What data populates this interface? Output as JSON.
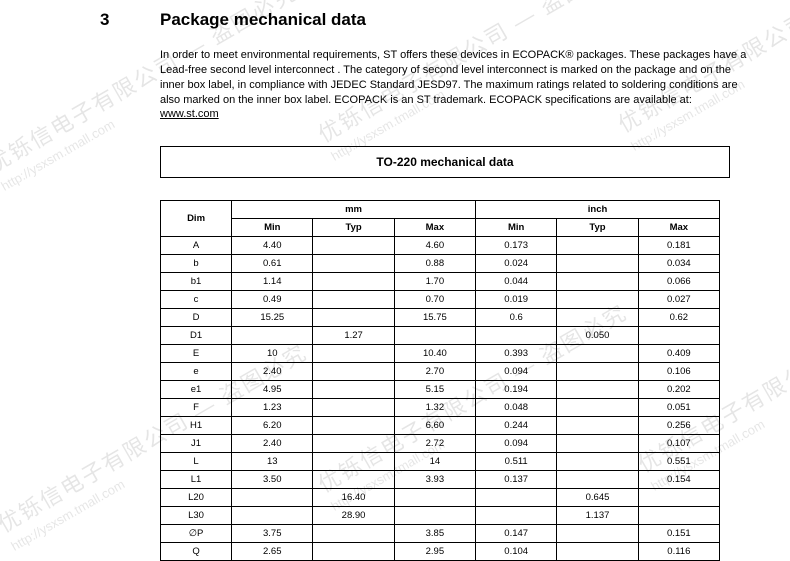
{
  "section": {
    "number": "3",
    "title": "Package mechanical data"
  },
  "paragraph": {
    "text": "In order to meet environmental requirements, ST offers these devices in ECOPACK® packages. These packages have a Lead-free second level interconnect . The category of second level interconnect is marked on the package and on the inner box label, in compliance with JEDEC Standard JESD97. The maximum ratings related to soldering conditions are also marked on the inner box label. ECOPACK is an ST trademark. ECOPACK specifications are available at: ",
    "link": "www.st.com"
  },
  "table": {
    "title": "TO-220 mechanical data",
    "header": {
      "dim": "Dim",
      "mm": "mm",
      "inch": "inch",
      "min": "Min",
      "typ": "Typ",
      "max": "Max"
    },
    "rows": [
      {
        "dim": "A",
        "mm_min": "4.40",
        "mm_typ": "",
        "mm_max": "4.60",
        "in_min": "0.173",
        "in_typ": "",
        "in_max": "0.181"
      },
      {
        "dim": "b",
        "mm_min": "0.61",
        "mm_typ": "",
        "mm_max": "0.88",
        "in_min": "0.024",
        "in_typ": "",
        "in_max": "0.034"
      },
      {
        "dim": "b1",
        "mm_min": "1.14",
        "mm_typ": "",
        "mm_max": "1.70",
        "in_min": "0.044",
        "in_typ": "",
        "in_max": "0.066"
      },
      {
        "dim": "c",
        "mm_min": "0.49",
        "mm_typ": "",
        "mm_max": "0.70",
        "in_min": "0.019",
        "in_typ": "",
        "in_max": "0.027"
      },
      {
        "dim": "D",
        "mm_min": "15.25",
        "mm_typ": "",
        "mm_max": "15.75",
        "in_min": "0.6",
        "in_typ": "",
        "in_max": "0.62"
      },
      {
        "dim": "D1",
        "mm_min": "",
        "mm_typ": "1.27",
        "mm_max": "",
        "in_min": "",
        "in_typ": "0.050",
        "in_max": ""
      },
      {
        "dim": "E",
        "mm_min": "10",
        "mm_typ": "",
        "mm_max": "10.40",
        "in_min": "0.393",
        "in_typ": "",
        "in_max": "0.409"
      },
      {
        "dim": "e",
        "mm_min": "2.40",
        "mm_typ": "",
        "mm_max": "2.70",
        "in_min": "0.094",
        "in_typ": "",
        "in_max": "0.106"
      },
      {
        "dim": "e1",
        "mm_min": "4.95",
        "mm_typ": "",
        "mm_max": "5.15",
        "in_min": "0.194",
        "in_typ": "",
        "in_max": "0.202"
      },
      {
        "dim": "F",
        "mm_min": "1.23",
        "mm_typ": "",
        "mm_max": "1.32",
        "in_min": "0.048",
        "in_typ": "",
        "in_max": "0.051"
      },
      {
        "dim": "H1",
        "mm_min": "6.20",
        "mm_typ": "",
        "mm_max": "6.60",
        "in_min": "0.244",
        "in_typ": "",
        "in_max": "0.256"
      },
      {
        "dim": "J1",
        "mm_min": "2.40",
        "mm_typ": "",
        "mm_max": "2.72",
        "in_min": "0.094",
        "in_typ": "",
        "in_max": "0.107"
      },
      {
        "dim": "L",
        "mm_min": "13",
        "mm_typ": "",
        "mm_max": "14",
        "in_min": "0.511",
        "in_typ": "",
        "in_max": "0.551"
      },
      {
        "dim": "L1",
        "mm_min": "3.50",
        "mm_typ": "",
        "mm_max": "3.93",
        "in_min": "0.137",
        "in_typ": "",
        "in_max": "0.154"
      },
      {
        "dim": "L20",
        "mm_min": "",
        "mm_typ": "16.40",
        "mm_max": "",
        "in_min": "",
        "in_typ": "0.645",
        "in_max": ""
      },
      {
        "dim": "L30",
        "mm_min": "",
        "mm_typ": "28.90",
        "mm_max": "",
        "in_min": "",
        "in_typ": "1.137",
        "in_max": ""
      },
      {
        "dim": "∅P",
        "mm_min": "3.75",
        "mm_typ": "",
        "mm_max": "3.85",
        "in_min": "0.147",
        "in_typ": "",
        "in_max": "0.151"
      },
      {
        "dim": "Q",
        "mm_min": "2.65",
        "mm_typ": "",
        "mm_max": "2.95",
        "in_min": "0.104",
        "in_typ": "",
        "in_max": "0.116"
      }
    ]
  },
  "watermark": {
    "cn": "优铄信电子有限公司 — 盗图必究",
    "url": "http://ysxsm.tmall.com"
  }
}
